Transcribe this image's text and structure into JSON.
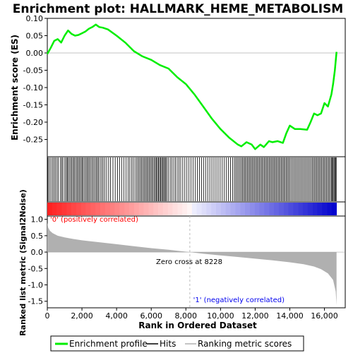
{
  "chart_data": {
    "type": "line",
    "title": "Enrichment plot: HALLMARK_HEME_METABOLISM",
    "enrichment_panel": {
      "ylabel": "Enrichment score (ES)",
      "ylim": [
        -0.3,
        0.1
      ],
      "yticks": [
        0.1,
        0.05,
        0.0,
        -0.05,
        -0.1,
        -0.15,
        -0.2,
        -0.25
      ],
      "ytick_labels": [
        "0.10",
        "0.05",
        "0.00",
        "-0.05",
        "-0.10",
        "-0.15",
        "-0.20",
        "-0.25"
      ],
      "x": [
        0,
        200,
        400,
        600,
        800,
        1000,
        1200,
        1400,
        1600,
        1800,
        2000,
        2200,
        2400,
        2600,
        2800,
        3000,
        3200,
        3500,
        4000,
        4500,
        5000,
        5500,
        6000,
        6500,
        7000,
        7500,
        8000,
        8500,
        9000,
        9500,
        10000,
        10500,
        11000,
        11200,
        11500,
        11800,
        12000,
        12300,
        12500,
        12800,
        13000,
        13300,
        13600,
        13800,
        14000,
        14300,
        14600,
        15000,
        15200,
        15400,
        15600,
        15800,
        16000,
        16200,
        16400,
        16500,
        16600,
        16700
      ],
      "values": [
        -0.003,
        0.015,
        0.035,
        0.04,
        0.03,
        0.05,
        0.065,
        0.055,
        0.05,
        0.052,
        0.057,
        0.062,
        0.07,
        0.075,
        0.082,
        0.075,
        0.073,
        0.068,
        0.05,
        0.03,
        0.005,
        -0.01,
        -0.02,
        -0.035,
        -0.045,
        -0.07,
        -0.09,
        -0.12,
        -0.155,
        -0.19,
        -0.22,
        -0.245,
        -0.265,
        -0.27,
        -0.258,
        -0.265,
        -0.278,
        -0.265,
        -0.272,
        -0.255,
        -0.258,
        -0.255,
        -0.26,
        -0.232,
        -0.21,
        -0.22,
        -0.22,
        -0.222,
        -0.2,
        -0.175,
        -0.18,
        -0.175,
        -0.145,
        -0.155,
        -0.12,
        -0.09,
        -0.05,
        0.003
      ]
    },
    "hits": [
      40,
      120,
      210,
      300,
      390,
      470,
      560,
      640,
      760,
      830,
      900,
      1010,
      1090,
      1150,
      1210,
      1290,
      1370,
      1430,
      1510,
      1560,
      1650,
      1720,
      1790,
      1860,
      1930,
      2000,
      2060,
      2140,
      2220,
      2290,
      2360,
      2430,
      2510,
      2590,
      2660,
      2740,
      2820,
      2890,
      2960,
      3050,
      3140,
      3220,
      3310,
      3420,
      3540,
      3650,
      3790,
      3920,
      4060,
      4180,
      4300,
      4420,
      4540,
      4660,
      4760,
      4860,
      4960,
      5060,
      5150,
      5240,
      5310,
      5390,
      5460,
      5540,
      5610,
      5680,
      5750,
      5820,
      5890,
      5960,
      6030,
      6100,
      6170,
      6240,
      6300,
      6360,
      6420,
      6480,
      6540,
      6600,
      6660,
      6720,
      6780,
      6840,
      6900,
      7000,
      7100,
      7200,
      7300,
      7400,
      7500,
      7600,
      7700,
      7820,
      7940,
      8060,
      8180,
      8300,
      8420,
      8540,
      8660,
      8780,
      8900,
      9020,
      9140,
      9260,
      9380,
      9500,
      9620,
      9740,
      9860,
      9980,
      10100,
      10220,
      10340,
      10460,
      10580,
      10700,
      10800,
      10880,
      10960,
      11040,
      11120,
      11200,
      11270,
      11340,
      11410,
      11480,
      11550,
      11620,
      11690,
      11760,
      11830,
      11900,
      11970,
      12040,
      12110,
      12180,
      12250,
      12320,
      12390,
      12460,
      12530,
      12600,
      12670,
      12740,
      12810,
      12880,
      12950,
      13020,
      13090,
      13160,
      13230,
      13300,
      13370,
      13440,
      13510,
      13580,
      13650,
      13720,
      13790,
      13860,
      13930,
      14000,
      14080,
      14160,
      14240,
      14320,
      14400,
      14480,
      14560,
      14640,
      14720,
      14800,
      14880,
      14960,
      15040,
      15120,
      15200,
      15280,
      15350,
      15420,
      15490,
      15560,
      15630,
      15700,
      15770,
      15840,
      15910,
      15980,
      16050,
      16120,
      16190,
      16260,
      16330,
      16400,
      16450,
      16500,
      16550,
      16600,
      16640,
      16680
    ],
    "metric_panel": {
      "ylabel": "Ranked list metric (Signal2Noise)",
      "ylim": [
        -1.7,
        1.1
      ],
      "yticks": [
        1.0,
        0.5,
        0.0,
        -0.5,
        -1.0,
        -1.5
      ],
      "ytick_labels": [
        "1.0",
        "0.5",
        "0.0",
        "-0.5",
        "-1.0",
        "-1.5"
      ],
      "x": [
        0,
        50,
        150,
        300,
        600,
        1000,
        1500,
        2000,
        3000,
        4000,
        5000,
        6000,
        7000,
        8228,
        9000,
        10000,
        11000,
        12000,
        13000,
        14000,
        14800,
        15400,
        15800,
        16200,
        16500,
        16650,
        16700
      ],
      "values": [
        0.9,
        0.75,
        0.65,
        0.58,
        0.5,
        0.45,
        0.4,
        0.36,
        0.3,
        0.24,
        0.18,
        0.12,
        0.07,
        0.0,
        -0.05,
        -0.1,
        -0.15,
        -0.2,
        -0.25,
        -0.31,
        -0.37,
        -0.44,
        -0.52,
        -0.65,
        -0.85,
        -1.2,
        -1.62
      ],
      "zero_cross_label": "Zero cross at 8228",
      "zero_cross": 8228,
      "positive_label": "'0' (positively correlated)",
      "negative_label": "'1' (negatively correlated)"
    },
    "xlabel": "Rank in Ordered Dataset",
    "xlim": [
      0,
      17200
    ],
    "xticks": [
      0,
      2000,
      4000,
      6000,
      8000,
      10000,
      12000,
      14000,
      16000
    ],
    "xtick_labels": [
      "0",
      "2,000",
      "4,000",
      "6,000",
      "8,000",
      "10,000",
      "12,000",
      "14,000",
      "16,000"
    ],
    "legend": {
      "placement": "bottom",
      "entries": [
        "Enrichment profile",
        "Hits",
        "Ranking metric scores"
      ]
    },
    "colors": {
      "profile": "#00ee00",
      "hits": "#000000",
      "metric": "#b0b0b0",
      "positive": "#ff0000",
      "negative": "#0000ee",
      "zero_line": "#bbbbbb"
    }
  }
}
